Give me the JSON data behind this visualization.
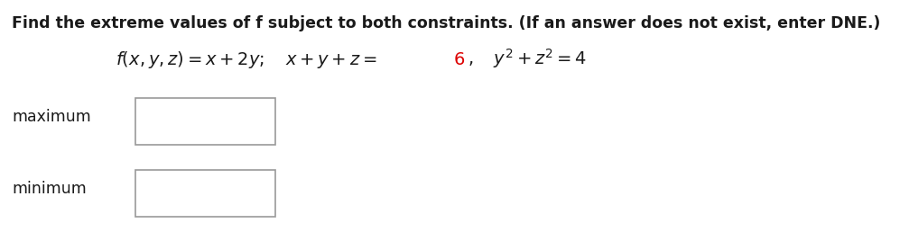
{
  "title_text": "Find the extreme values of f subject to both constraints. (If an answer does not exist, enter DNE.)",
  "title_fontsize": 12.5,
  "title_color": "#1a1a1a",
  "formula_fontsize": 14.0,
  "formula_color": "#1a1a1a",
  "formula_red": "#dd0000",
  "maximum_label": "maximum",
  "minimum_label": "minimum",
  "label_fontsize": 12.5,
  "label_color": "#1a1a1a",
  "box_edge_color": "#999999",
  "background_color": "#ffffff",
  "fig_width": 10.07,
  "fig_height": 2.58,
  "dpi": 100
}
